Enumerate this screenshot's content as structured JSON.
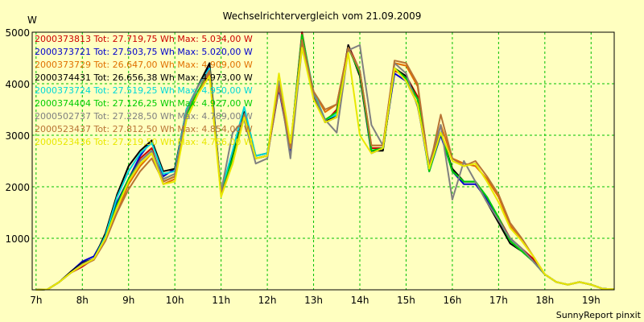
{
  "chart_data": {
    "type": "line",
    "title": "Wechselrichtervergleich vom 21.09.2009",
    "ylabel": "W",
    "ylim": [
      0,
      5000
    ],
    "xlim": [
      6.916,
      19.5
    ],
    "grid": true,
    "legend_placement": "top-left",
    "x_ticks": [
      {
        "value": 7,
        "label": "7h"
      },
      {
        "value": 8,
        "label": "8h"
      },
      {
        "value": 9,
        "label": "9h"
      },
      {
        "value": 10,
        "label": "10h"
      },
      {
        "value": 11,
        "label": "11h"
      },
      {
        "value": 12,
        "label": "12h"
      },
      {
        "value": 13,
        "label": "13h"
      },
      {
        "value": 14,
        "label": "14h"
      },
      {
        "value": 15,
        "label": "15h"
      },
      {
        "value": 16,
        "label": "16h"
      },
      {
        "value": 17,
        "label": "17h"
      },
      {
        "value": 18,
        "label": "18h"
      },
      {
        "value": 19,
        "label": "19h"
      }
    ],
    "y_ticks": [
      {
        "value": 1000,
        "label": "1000"
      },
      {
        "value": 2000,
        "label": "2000"
      },
      {
        "value": 3000,
        "label": "3000"
      },
      {
        "value": 4000,
        "label": "4000"
      },
      {
        "value": 5000,
        "label": "5000"
      }
    ],
    "x": [
      7.0,
      7.25,
      7.5,
      7.75,
      8.0,
      8.25,
      8.5,
      8.75,
      9.0,
      9.25,
      9.5,
      9.75,
      10.0,
      10.25,
      10.5,
      10.75,
      11.0,
      11.25,
      11.5,
      11.75,
      12.0,
      12.25,
      12.5,
      12.75,
      13.0,
      13.25,
      13.5,
      13.75,
      14.0,
      14.25,
      14.5,
      14.75,
      15.0,
      15.25,
      15.5,
      15.75,
      16.0,
      16.25,
      16.5,
      16.75,
      17.0,
      17.25,
      17.5,
      17.75,
      18.0,
      18.25,
      18.5,
      18.75,
      19.0,
      19.25,
      19.5
    ],
    "series": [
      {
        "name": "2000373813",
        "legend_text": "2000373813 Tot: 27.719,75 Wh Max: 5.034,00 W",
        "color": "#cc0000",
        "values": [
          0,
          10,
          150,
          330,
          450,
          600,
          1050,
          1650,
          2150,
          2550,
          2750,
          2100,
          2200,
          3450,
          3950,
          4300,
          1850,
          2500,
          3450,
          2550,
          2600,
          4000,
          2750,
          5000,
          3750,
          3250,
          3500,
          4750,
          4250,
          2750,
          2750,
          4250,
          4150,
          3750,
          2300,
          3050,
          2300,
          2100,
          2100,
          1750,
          1400,
          1000,
          800,
          600,
          300,
          150,
          100,
          150,
          100,
          20,
          10
        ]
      },
      {
        "name": "2000373721",
        "legend_text": "2000373721 Tot: 27.503,75 Wh Max: 5.020,00 W",
        "color": "#0000cc",
        "values": [
          0,
          10,
          150,
          350,
          550,
          650,
          1050,
          1700,
          2150,
          2600,
          2900,
          2200,
          2350,
          3450,
          3950,
          4350,
          1850,
          2500,
          3350,
          2550,
          2600,
          3900,
          2700,
          4950,
          3800,
          3250,
          3350,
          4750,
          4150,
          2650,
          2750,
          4200,
          4050,
          3600,
          2300,
          3000,
          2300,
          2050,
          2050,
          1750,
          1350,
          1000,
          800,
          550,
          300,
          150,
          100,
          150,
          100,
          20,
          10
        ]
      },
      {
        "name": "2000373729",
        "legend_text": "2000373729 Tot: 26.647,00 Wh Max: 4.909,00 W",
        "color": "#e07000",
        "values": [
          0,
          10,
          150,
          330,
          480,
          600,
          1000,
          1500,
          2050,
          2400,
          2650,
          2050,
          2150,
          3400,
          3850,
          4200,
          1850,
          2450,
          3400,
          2550,
          2600,
          3950,
          2750,
          4800,
          3850,
          3450,
          3600,
          4700,
          4250,
          2800,
          2800,
          4400,
          4350,
          3950,
          2350,
          3200,
          2550,
          2450,
          2400,
          2150,
          1800,
          1250,
          950,
          650,
          300,
          150,
          100,
          150,
          100,
          20,
          10
        ]
      },
      {
        "name": "2000374431",
        "legend_text": "2000374431 Tot: 26.656,38 Wh Max: 4.973,00 W",
        "color": "#000000",
        "values": [
          0,
          10,
          150,
          350,
          520,
          600,
          1100,
          1850,
          2400,
          2700,
          2900,
          2300,
          2350,
          3500,
          3950,
          4400,
          1900,
          2600,
          3450,
          2600,
          2650,
          4050,
          2750,
          4950,
          3800,
          3250,
          3400,
          4750,
          4150,
          2700,
          2700,
          4300,
          4150,
          3700,
          2350,
          3050,
          2350,
          2100,
          2100,
          1700,
          1300,
          900,
          750,
          550,
          300,
          150,
          100,
          150,
          100,
          20,
          10
        ]
      },
      {
        "name": "2000373724",
        "legend_text": "2000373724 Tot: 27.519,25 Wh Max: 4.950,00 W",
        "color": "#00d8d8",
        "values": [
          0,
          10,
          150,
          330,
          500,
          600,
          1050,
          1800,
          2300,
          2650,
          2850,
          2250,
          2300,
          3500,
          3950,
          4300,
          1900,
          2700,
          3550,
          2600,
          2650,
          4000,
          2750,
          4950,
          3850,
          3300,
          3400,
          4700,
          4250,
          2700,
          2750,
          4300,
          4100,
          3700,
          2300,
          3050,
          2300,
          2100,
          2100,
          1800,
          1400,
          950,
          750,
          550,
          300,
          150,
          100,
          150,
          100,
          20,
          10
        ]
      },
      {
        "name": "2000374404",
        "legend_text": "2000374404 Tot: 27.126,25 Wh Max: 4.927,00 W",
        "color": "#00cc00",
        "values": [
          0,
          10,
          150,
          330,
          480,
          600,
          1000,
          1650,
          2150,
          2500,
          2700,
          2150,
          2250,
          3400,
          3850,
          4250,
          1850,
          2550,
          3400,
          2550,
          2600,
          4000,
          2750,
          4950,
          3800,
          3300,
          3450,
          4700,
          4200,
          2700,
          2750,
          4300,
          4100,
          3700,
          2300,
          3050,
          2300,
          2100,
          2100,
          1800,
          1400,
          950,
          750,
          550,
          300,
          150,
          100,
          150,
          100,
          20,
          10
        ]
      },
      {
        "name": "2000502737",
        "legend_text": "2000502737 Tot: 27.228,50 Wh Max: 4.789,00 W",
        "color": "#808080",
        "values": [
          0,
          10,
          150,
          330,
          500,
          600,
          1000,
          1600,
          2100,
          2500,
          2700,
          2150,
          2250,
          3450,
          3950,
          4250,
          1900,
          3050,
          3300,
          2450,
          2550,
          4050,
          2550,
          4700,
          3800,
          3300,
          3050,
          4650,
          4750,
          3200,
          2800,
          4400,
          4200,
          3550,
          2450,
          3200,
          1750,
          2500,
          2100,
          1700,
          1350,
          1000,
          800,
          550,
          300,
          150,
          100,
          150,
          100,
          20,
          10
        ]
      },
      {
        "name": "2000523437",
        "legend_text": "2000523437 Tot: 27.812,50 Wh Max: 4.854,00 W",
        "color": "#b87333",
        "values": [
          0,
          10,
          150,
          330,
          470,
          580,
          950,
          1500,
          1950,
          2300,
          2550,
          2100,
          2200,
          3300,
          3800,
          4250,
          1850,
          2450,
          3400,
          2550,
          2600,
          3950,
          2750,
          4850,
          3850,
          3500,
          3600,
          4700,
          4250,
          2800,
          2800,
          4450,
          4400,
          4000,
          2350,
          3400,
          2550,
          2400,
          2500,
          2200,
          1850,
          1300,
          1000,
          650,
          300,
          150,
          100,
          150,
          100,
          20,
          10
        ]
      },
      {
        "name": "2000523436",
        "legend_text": "2000523436 Tot: 27.219,50 Wh Max: 4.756,00 W",
        "color": "#e8e800",
        "values": [
          0,
          10,
          150,
          330,
          480,
          600,
          1000,
          1600,
          2100,
          2450,
          2650,
          2050,
          2100,
          3300,
          3800,
          4150,
          1800,
          2450,
          3350,
          2550,
          2600,
          4200,
          2850,
          4700,
          3700,
          3250,
          3350,
          4600,
          3000,
          2650,
          2750,
          4300,
          4050,
          3600,
          2350,
          3050,
          2500,
          2400,
          2450,
          2100,
          1700,
          1200,
          950,
          650,
          300,
          150,
          100,
          150,
          100,
          20,
          10
        ]
      }
    ]
  },
  "footer": {
    "credit": "SunnyReport pinxit"
  }
}
